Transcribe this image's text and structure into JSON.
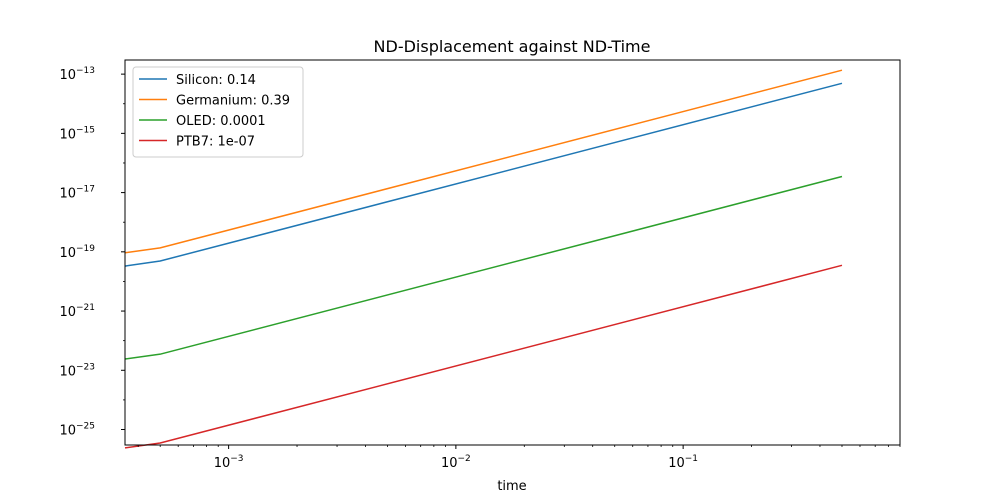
{
  "chart_data": {
    "type": "line",
    "title": "ND-Displacement against ND-Time",
    "xlabel": "time",
    "ylabel": "",
    "xscale": "log",
    "yscale": "log",
    "xlim": [
      0.00035,
      0.9
    ],
    "ylim": [
      3e-26,
      3e-13
    ],
    "grid": false,
    "legend_position": "top-left",
    "x_ticks": [
      {
        "value": 0.001,
        "base": "10",
        "exp": "−3"
      },
      {
        "value": 0.01,
        "base": "10",
        "exp": "−2"
      },
      {
        "value": 0.1,
        "base": "10",
        "exp": "−1"
      }
    ],
    "y_ticks": [
      {
        "value": 1e-13,
        "base": "10",
        "exp": "−13"
      },
      {
        "value": 1e-15,
        "base": "10",
        "exp": "−15"
      },
      {
        "value": 1e-17,
        "base": "10",
        "exp": "−17"
      },
      {
        "value": 1e-19,
        "base": "10",
        "exp": "−19"
      },
      {
        "value": 1e-21,
        "base": "10",
        "exp": "−21"
      },
      {
        "value": 1e-23,
        "base": "10",
        "exp": "−23"
      },
      {
        "value": 1e-25,
        "base": "10",
        "exp": "−25"
      }
    ],
    "series": [
      {
        "name": "Silicon: 0.14",
        "color": "#1f77b4",
        "x": [
          0.00035,
          0.0005,
          0.5
        ],
        "y": [
          3.3e-20,
          4.9e-20,
          4.9e-14
        ]
      },
      {
        "name": "Germanium: 0.39",
        "color": "#ff7f0e",
        "x": [
          0.00035,
          0.0005,
          0.5
        ],
        "y": [
          9.3e-20,
          1.36e-19,
          1.36e-13
        ]
      },
      {
        "name": "OLED: 0.0001",
        "color": "#2ca02c",
        "x": [
          0.00035,
          0.0005,
          0.5
        ],
        "y": [
          2.4e-23,
          3.5e-23,
          3.5e-17
        ]
      },
      {
        "name": "PTB7: 1e-07",
        "color": "#d62728",
        "x": [
          0.00035,
          0.0005,
          0.5
        ],
        "y": [
          2.4e-26,
          3.5e-26,
          3.5e-20
        ]
      }
    ]
  }
}
